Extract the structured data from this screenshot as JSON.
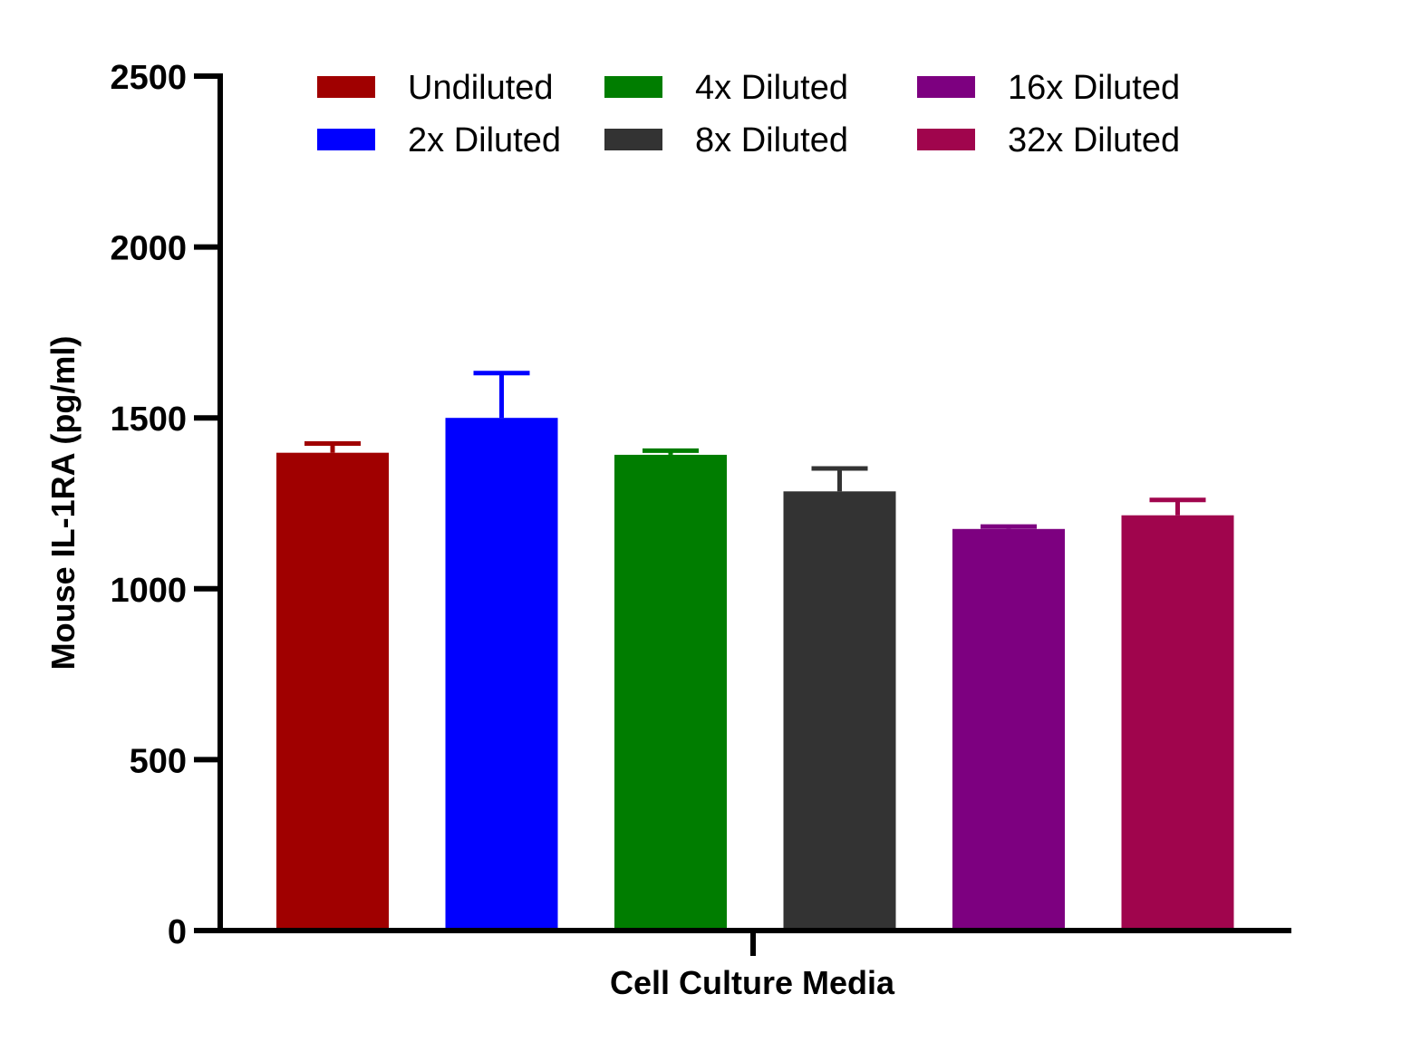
{
  "chart_data": {
    "type": "bar",
    "title": "",
    "xlabel": "Cell Culture Media",
    "ylabel": "Mouse IL-1RA (pg/ml)",
    "categories": [
      "Cell Culture Media"
    ],
    "ylim": [
      0,
      2500
    ],
    "yticks": [
      0,
      500,
      1000,
      1500,
      2000,
      2500
    ],
    "grid": false,
    "legend_position": "top",
    "series": [
      {
        "name": "Undiluted",
        "value": 1398,
        "error": 27,
        "color": "#a00000"
      },
      {
        "name": "2x Diluted",
        "value": 1500,
        "error": 131,
        "color": "#0000ff"
      },
      {
        "name": "4x Diluted",
        "value": 1392,
        "error": 12,
        "color": "#007d00"
      },
      {
        "name": "8x Diluted",
        "value": 1285,
        "error": 67,
        "color": "#333333"
      },
      {
        "name": "16x Diluted",
        "value": 1175,
        "error": 7,
        "color": "#7d0080"
      },
      {
        "name": "32x Diluted",
        "value": 1215,
        "error": 45,
        "color": "#a0054d"
      }
    ]
  }
}
